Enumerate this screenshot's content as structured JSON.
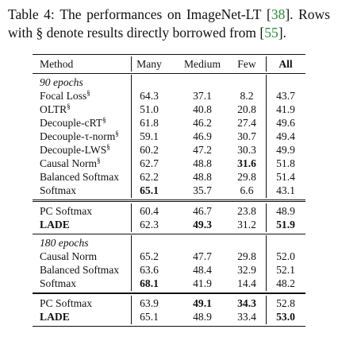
{
  "caption": {
    "label": "Table 4:",
    "line1_words": [
      "Table",
      "4:",
      "The",
      "performances",
      "on",
      "ImageNet-LT",
      "[38].",
      "Rows"
    ],
    "ref1": "38",
    "ref2": "55",
    "text_a": "The performances on ImageNet-LT [",
    "text_b": "].  Rows",
    "text_c": "with § denote results directly borrowed from [",
    "text_d": "]."
  },
  "table": {
    "headers": {
      "method": "Method",
      "many": "Many",
      "medium": "Medium",
      "few": "Few",
      "all": "All"
    },
    "sections": [
      {
        "label": "90 epochs",
        "rows": [
          {
            "method": "Focal Loss",
            "mark": "§",
            "many": "64.3",
            "medium": "37.1",
            "few": "8.2",
            "all": "43.7"
          },
          {
            "method": "OLTR",
            "mark": "§",
            "many": "51.0",
            "medium": "40.8",
            "few": "20.8",
            "all": "41.9"
          },
          {
            "method": "Decouple-cRT",
            "mark": "§",
            "many": "61.8",
            "medium": "46.2",
            "few": "27.4",
            "all": "49.6"
          },
          {
            "method": "Decouple-τ-norm",
            "mark": "§",
            "many": "59.1",
            "medium": "46.9",
            "few": "30.7",
            "all": "49.4"
          },
          {
            "method": "Decouple-LWS",
            "mark": "§",
            "many": "60.2",
            "medium": "47.2",
            "few": "30.3",
            "all": "49.9"
          },
          {
            "method": "Causal Norm",
            "mark": "§",
            "many": "62.7",
            "medium": "48.8",
            "few": "31.6",
            "all": "51.8"
          },
          {
            "method": "Balanced Softmax",
            "mark": "",
            "many": "62.2",
            "medium": "48.8",
            "few": "29.8",
            "all": "51.4"
          },
          {
            "method": "Softmax",
            "mark": "",
            "many": "65.1",
            "medium": "35.7",
            "few": "6.6",
            "all": "43.1"
          }
        ],
        "ours": [
          {
            "method": "PC Softmax",
            "many": "60.4",
            "medium": "46.7",
            "few": "23.8",
            "all": "48.9"
          },
          {
            "method": "LADE",
            "many": "62.3",
            "medium": "49.3",
            "few": "31.2",
            "all": "51.9"
          }
        ]
      },
      {
        "label": "180 epochs",
        "rows": [
          {
            "method": "Causal Norm",
            "mark": "",
            "many": "65.2",
            "medium": "47.7",
            "few": "29.8",
            "all": "52.0"
          },
          {
            "method": "Balanced Softmax",
            "mark": "",
            "many": "63.6",
            "medium": "48.4",
            "few": "32.9",
            "all": "52.1"
          },
          {
            "method": "Softmax",
            "mark": "",
            "many": "68.1",
            "medium": "41.9",
            "few": "14.4",
            "all": "48.2"
          }
        ],
        "ours": [
          {
            "method": "PC Softmax",
            "many": "63.9",
            "medium": "49.1",
            "few": "34.3",
            "all": "52.8"
          },
          {
            "method": "LADE",
            "many": "65.1",
            "medium": "48.9",
            "few": "33.4",
            "all": "53.0"
          }
        ]
      }
    ]
  }
}
